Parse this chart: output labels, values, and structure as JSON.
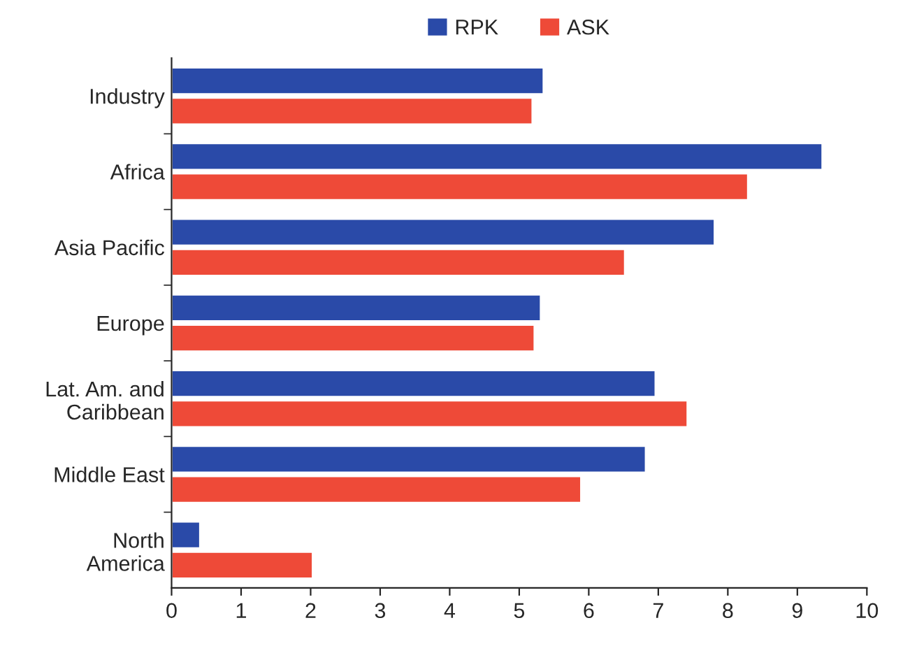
{
  "chart_data": {
    "type": "bar",
    "orientation": "horizontal",
    "categories": [
      "Industry",
      "Africa",
      "Asia Pacific",
      "Europe",
      "Lat. Am. and\nCaribbean",
      "Middle East",
      "North\nAmerica"
    ],
    "series": [
      {
        "name": "RPK",
        "color": "#2a4aa8",
        "values": [
          5.35,
          9.36,
          7.81,
          5.31,
          6.96,
          6.82,
          0.41
        ]
      },
      {
        "name": "ASK",
        "color": "#ee4a38",
        "values": [
          5.19,
          8.29,
          6.52,
          5.22,
          7.42,
          5.89,
          2.03
        ]
      }
    ],
    "xlim": [
      0,
      10
    ],
    "xticks": [
      0,
      1,
      2,
      3,
      4,
      5,
      6,
      7,
      8,
      9,
      10
    ],
    "grid": false,
    "legend": "top"
  }
}
